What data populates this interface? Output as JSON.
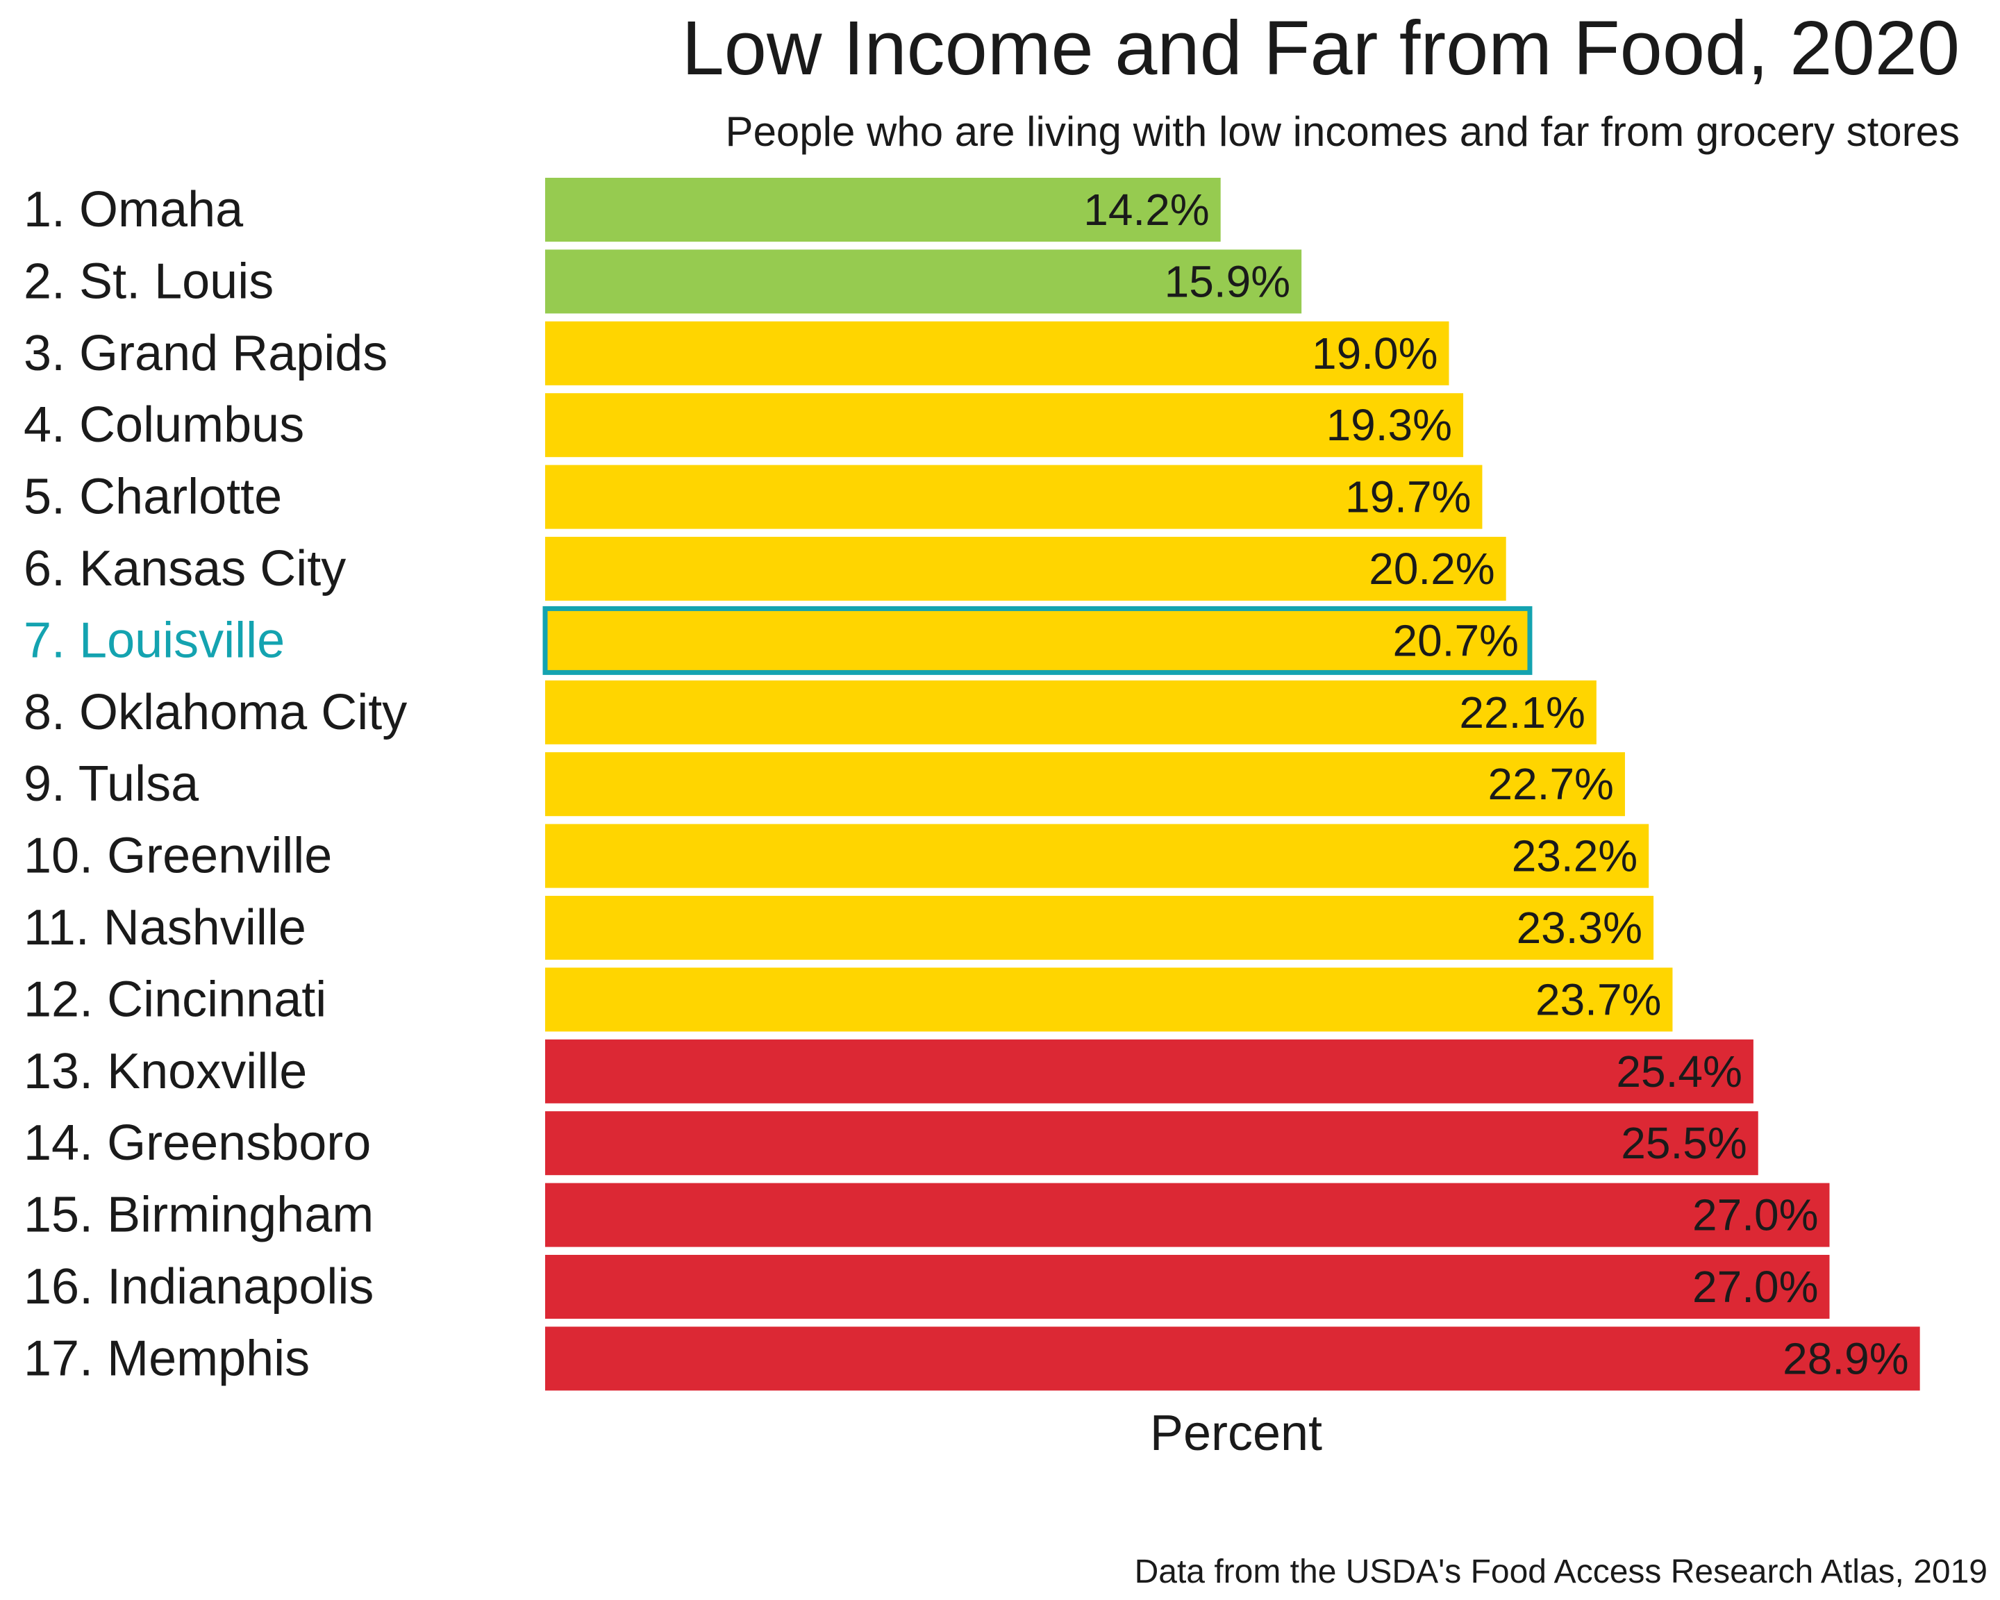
{
  "chart_data": {
    "type": "bar",
    "orientation": "horizontal",
    "title": "Low Income and Far from Food, 2020",
    "subtitle": "People who are living with low incomes and far from grocery stores",
    "xlabel": "Percent",
    "source": "Data from the USDA's Food Access Research Atlas, 2019",
    "value_suffix": "%",
    "xlim": [
      0,
      30
    ],
    "grid": false,
    "legend": "none",
    "highlight": "7. Louisville",
    "categories": [
      "1. Omaha",
      "2. St. Louis",
      "3. Grand Rapids",
      "4. Columbus",
      "5. Charlotte",
      "6. Kansas City",
      "7. Louisville",
      "8. Oklahoma City",
      "9. Tulsa",
      "10. Greenville",
      "11. Nashville",
      "12. Cincinnati",
      "13. Knoxville",
      "14. Greensboro",
      "15. Birmingham",
      "16. Indianapolis",
      "17. Memphis"
    ],
    "values": [
      14.2,
      15.9,
      19.0,
      19.3,
      19.7,
      20.2,
      20.7,
      22.1,
      22.7,
      23.2,
      23.3,
      23.7,
      25.4,
      25.5,
      27.0,
      27.0,
      28.9
    ],
    "value_labels": [
      "14.2%",
      "15.9%",
      "19.0%",
      "19.3%",
      "19.7%",
      "20.2%",
      "20.7%",
      "22.1%",
      "22.7%",
      "23.2%",
      "23.3%",
      "23.7%",
      "25.4%",
      "25.5%",
      "27.0%",
      "27.0%",
      "28.9%"
    ],
    "bar_colors": [
      "#96cb50",
      "#96cb50",
      "#ffd500",
      "#ffd500",
      "#ffd500",
      "#ffd500",
      "#ffd500",
      "#ffd500",
      "#ffd500",
      "#ffd500",
      "#ffd500",
      "#ffd500",
      "#dc2834",
      "#dc2834",
      "#dc2834",
      "#dc2834",
      "#dc2834"
    ],
    "colors": {
      "green": "#96cb50",
      "yellow": "#ffd500",
      "red": "#dc2834",
      "highlight": "#14a3b0",
      "text": "#1a1a1a"
    }
  }
}
